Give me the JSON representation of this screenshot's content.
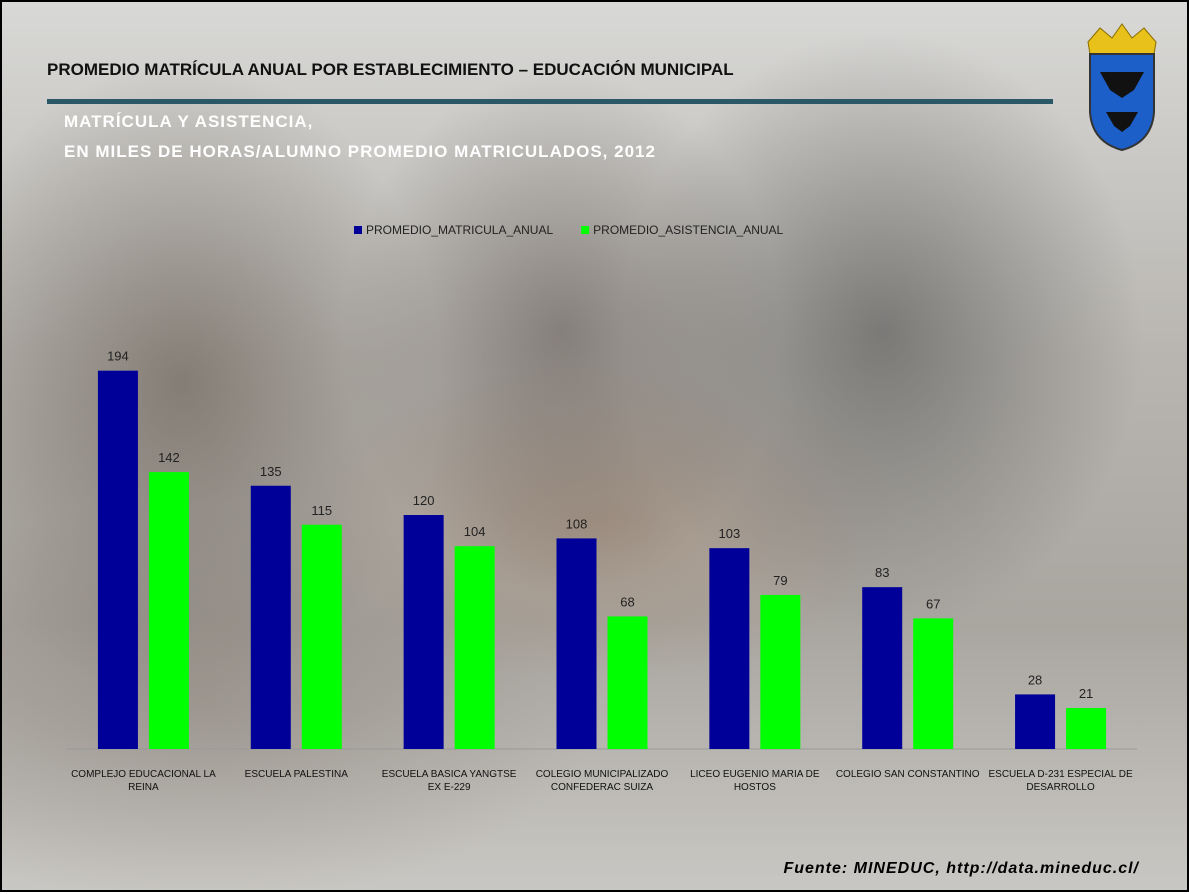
{
  "chart_data": {
    "type": "bar",
    "title": "PROMEDIO MATRÍCULA ANUAL POR ESTABLECIMIENTO – EDUCACIÓN MUNICIPAL",
    "subtitle": [
      "MATRÍCULA Y ASISTENCIA,",
      "EN MILES DE HORAS/ALUMNO PROMEDIO MATRICULADOS, 2012"
    ],
    "source": "Fuente: MINEDUC, http://data.mineduc.cl/",
    "categories": [
      "COMPLEJO EDUCACIONAL LA REINA",
      "ESCUELA PALESTINA",
      "ESCUELA BASICA YANGTSE EX E-229",
      "COLEGIO MUNICIPALIZADO CONFEDERAC SUIZA",
      "LICEO EUGENIO MARIA DE HOSTOS",
      "COLEGIO SAN CONSTANTINO",
      "ESCUELA D-231 ESPECIAL DE DESARROLLO"
    ],
    "series": [
      {
        "name": "PROMEDIO_MATRICULA_ANUAL",
        "color": "#000099",
        "values": [
          194,
          135,
          120,
          108,
          103,
          83,
          28
        ]
      },
      {
        "name": "PROMEDIO_ASISTENCIA_ANUAL",
        "color": "#00ff00",
        "values": [
          142,
          115,
          104,
          68,
          79,
          67,
          21
        ]
      }
    ],
    "ylim": [
      0,
      200
    ],
    "legend": "top"
  }
}
